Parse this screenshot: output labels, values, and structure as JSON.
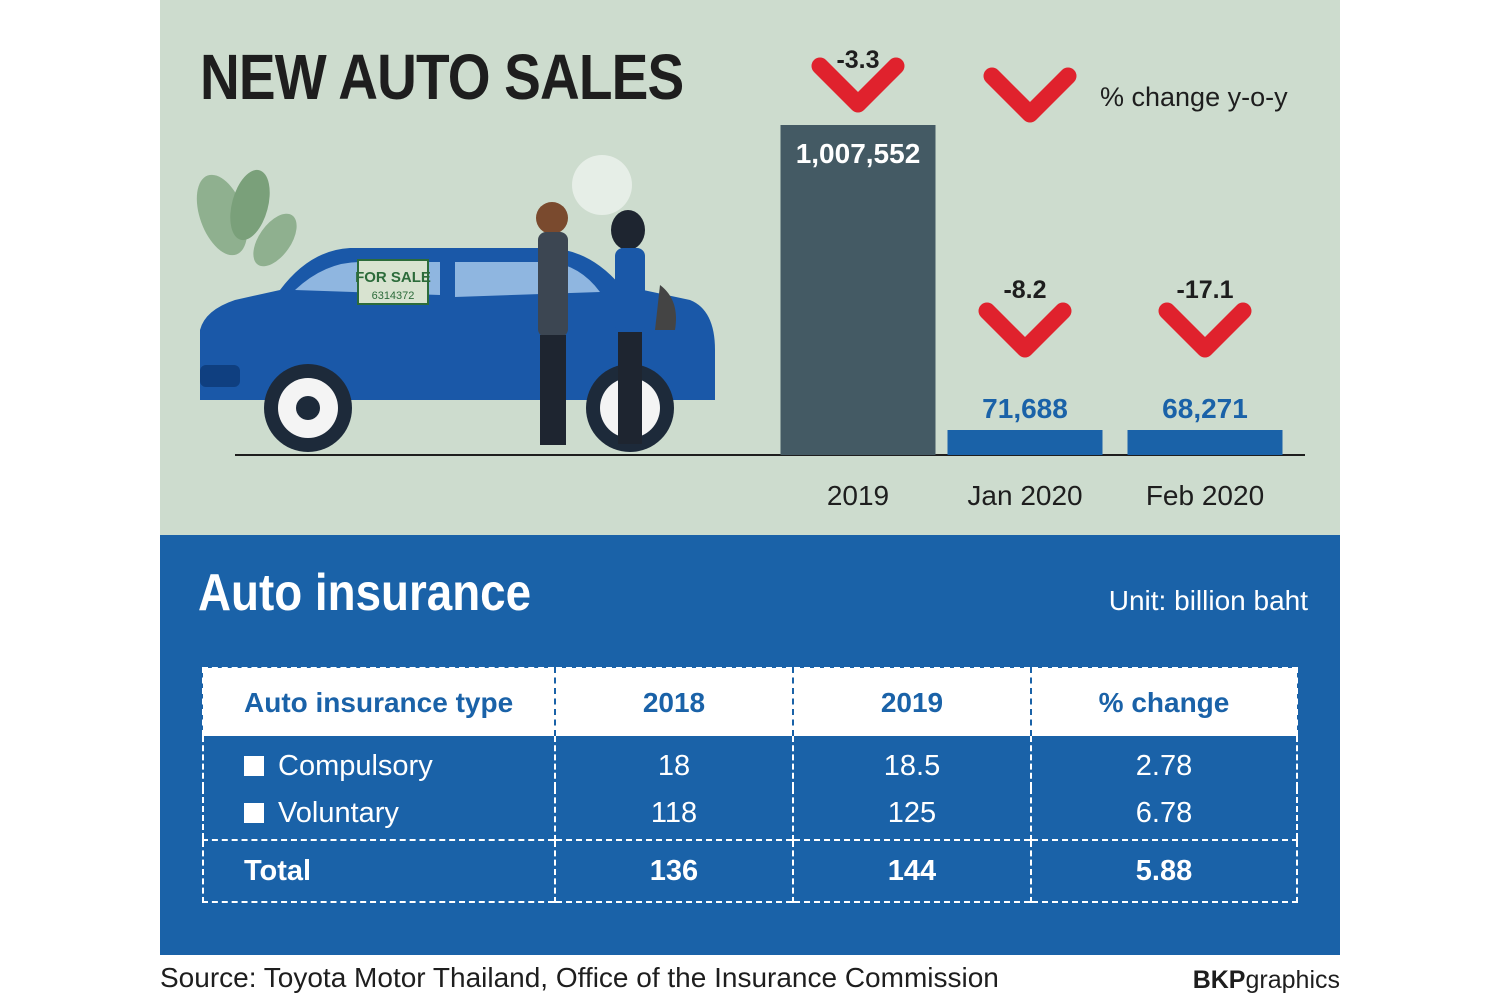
{
  "sales": {
    "title": "NEW AUTO SALES",
    "change_note": "% change y-o-y",
    "illustration_sign_label": "FOR SALE",
    "illustration_sign_number": "6314372"
  },
  "chart_data": {
    "type": "bar",
    "categories": [
      "2019",
      "Jan 2020",
      "Feb 2020"
    ],
    "values": [
      1007552,
      71688,
      68271
    ],
    "value_labels": [
      "1,007,552",
      "71,688",
      "68,271"
    ],
    "yoy_change": [
      -3.3,
      -8.2,
      -17.1
    ],
    "yoy_change_labels": [
      "-3.3",
      "-8.2",
      "-17.1"
    ],
    "title": "NEW AUTO SALES",
    "xlabel": "",
    "ylabel": "",
    "colors": {
      "annual": "#445a64",
      "monthly": "#1a62a8",
      "change_mark": "#e0222d"
    }
  },
  "insurance": {
    "title": "Auto insurance",
    "unit": "Unit: billion baht",
    "headers": [
      "Auto insurance type",
      "2018",
      "2019",
      "% change"
    ],
    "rows": [
      {
        "type": "Compulsory",
        "y2018": "18",
        "y2019": "18.5",
        "change": "2.78"
      },
      {
        "type": "Voluntary",
        "y2018": "118",
        "y2019": "125",
        "change": "6.78"
      }
    ],
    "total": {
      "type": "Total",
      "y2018": "136",
      "y2019": "144",
      "change": "5.88"
    }
  },
  "footer": {
    "source": "Source: Toyota Motor Thailand, Office of the Insurance Commission",
    "credit_bold": "BKP",
    "credit_rest": "graphics"
  },
  "colors": {
    "top_bg": "#cddcce",
    "bottom_bg": "#1a62a8",
    "brand_blue": "#1a62a8",
    "accent_red": "#e0222d"
  }
}
